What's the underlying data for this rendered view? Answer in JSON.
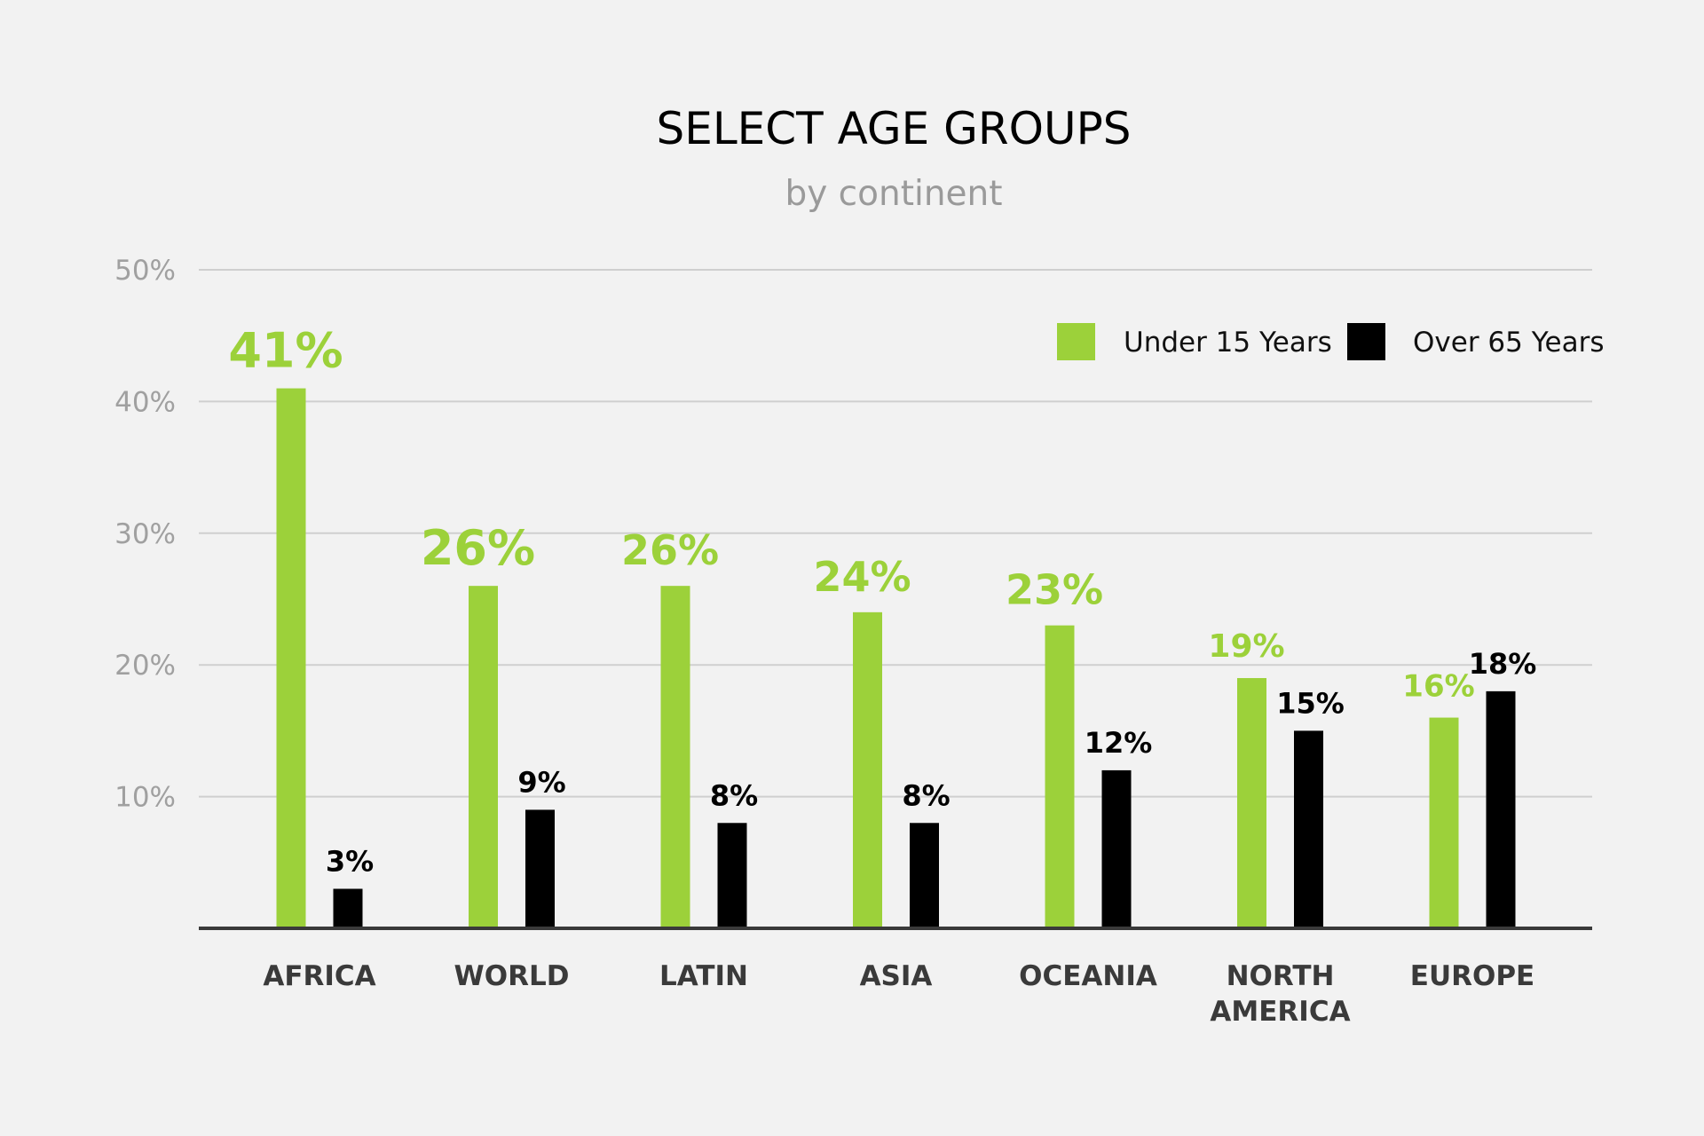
{
  "chart_data": {
    "type": "bar",
    "title": "SELECT AGE GROUPS",
    "subtitle": "by continent",
    "xlabel": "",
    "ylabel": "",
    "ylim": [
      0,
      50
    ],
    "yticks": [
      "10%",
      "20%",
      "30%",
      "40%",
      "50%"
    ],
    "ytick_values": [
      10,
      20,
      30,
      40,
      50
    ],
    "grid": true,
    "legend_position": "top-right",
    "categories": [
      [
        "AFRICA"
      ],
      [
        "WORLD"
      ],
      [
        "LATIN"
      ],
      [
        "ASIA"
      ],
      [
        "OCEANIA"
      ],
      [
        "NORTH",
        "AMERICA"
      ],
      [
        "EUROPE"
      ]
    ],
    "series": [
      {
        "name": "Under 15 Years",
        "color": "#9cd13a",
        "values": [
          41,
          26,
          26,
          24,
          23,
          19,
          16
        ],
        "labels": [
          "41%",
          "26%",
          "26%",
          "24%",
          "23%",
          "19%",
          "16%"
        ]
      },
      {
        "name": "Over 65 Years",
        "color": "#000000",
        "values": [
          3,
          9,
          8,
          8,
          12,
          15,
          18
        ],
        "labels": [
          "3%",
          "9%",
          "8%",
          "8%",
          "12%",
          "15%",
          "18%"
        ]
      }
    ]
  }
}
